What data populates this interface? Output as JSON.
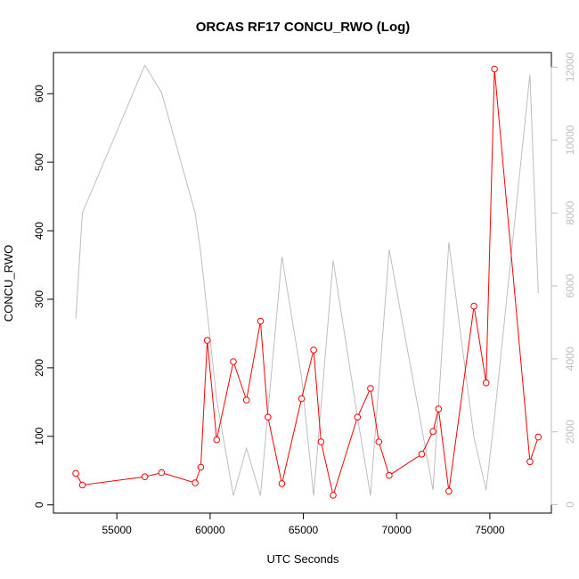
{
  "chart_data": {
    "type": "line",
    "title": "ORCAS RF17 CONCU_RWO (Log)",
    "xlabel": "UTC Seconds",
    "ylabel": "CONCU_RWO",
    "y2label": "",
    "xlim": [
      51600,
      78300
    ],
    "ylim": [
      -12,
      660
    ],
    "y2lim": [
      -230,
      12400
    ],
    "x_ticks": [
      55000,
      60000,
      65000,
      70000,
      75000
    ],
    "y_ticks": [
      0,
      100,
      200,
      300,
      400,
      500,
      600
    ],
    "y2_ticks": [
      0,
      2000,
      4000,
      6000,
      8000,
      10000,
      12000
    ],
    "grid": false,
    "series": [
      {
        "name": "",
        "axis": "left",
        "color": "#ff0000",
        "marker": "open-circle",
        "x": [
          52800,
          53150,
          56500,
          57400,
          59200,
          59500,
          59850,
          60350,
          61250,
          61950,
          62700,
          63100,
          63850,
          64900,
          65550,
          65950,
          66600,
          67900,
          68600,
          69050,
          69600,
          71350,
          71950,
          72250,
          72800,
          74150,
          74800,
          75250,
          77150,
          77600
        ],
        "values": [
          46,
          29,
          41,
          47,
          32,
          55,
          240,
          95,
          209,
          153,
          268,
          128,
          31,
          155,
          226,
          92,
          14,
          128,
          170,
          92,
          43,
          74,
          107,
          140,
          20,
          290,
          178,
          636,
          63,
          99
        ]
      },
      {
        "name": "",
        "axis": "right",
        "color": "#bebebe",
        "marker": "none",
        "x": [
          52800,
          53150,
          56500,
          57400,
          59200,
          59500,
          60350,
          61250,
          61950,
          62700,
          63850,
          64900,
          65550,
          66600,
          67900,
          68600,
          69600,
          71350,
          71950,
          72800,
          74150,
          74800,
          75250,
          77150,
          77600
        ],
        "values": [
          5100,
          8000,
          12050,
          11300,
          8000,
          6900,
          2900,
          250,
          1550,
          250,
          6800,
          3500,
          250,
          6700,
          2400,
          250,
          7000,
          2100,
          400,
          7200,
          1850,
          400,
          2400,
          11800,
          5800
        ]
      }
    ]
  }
}
